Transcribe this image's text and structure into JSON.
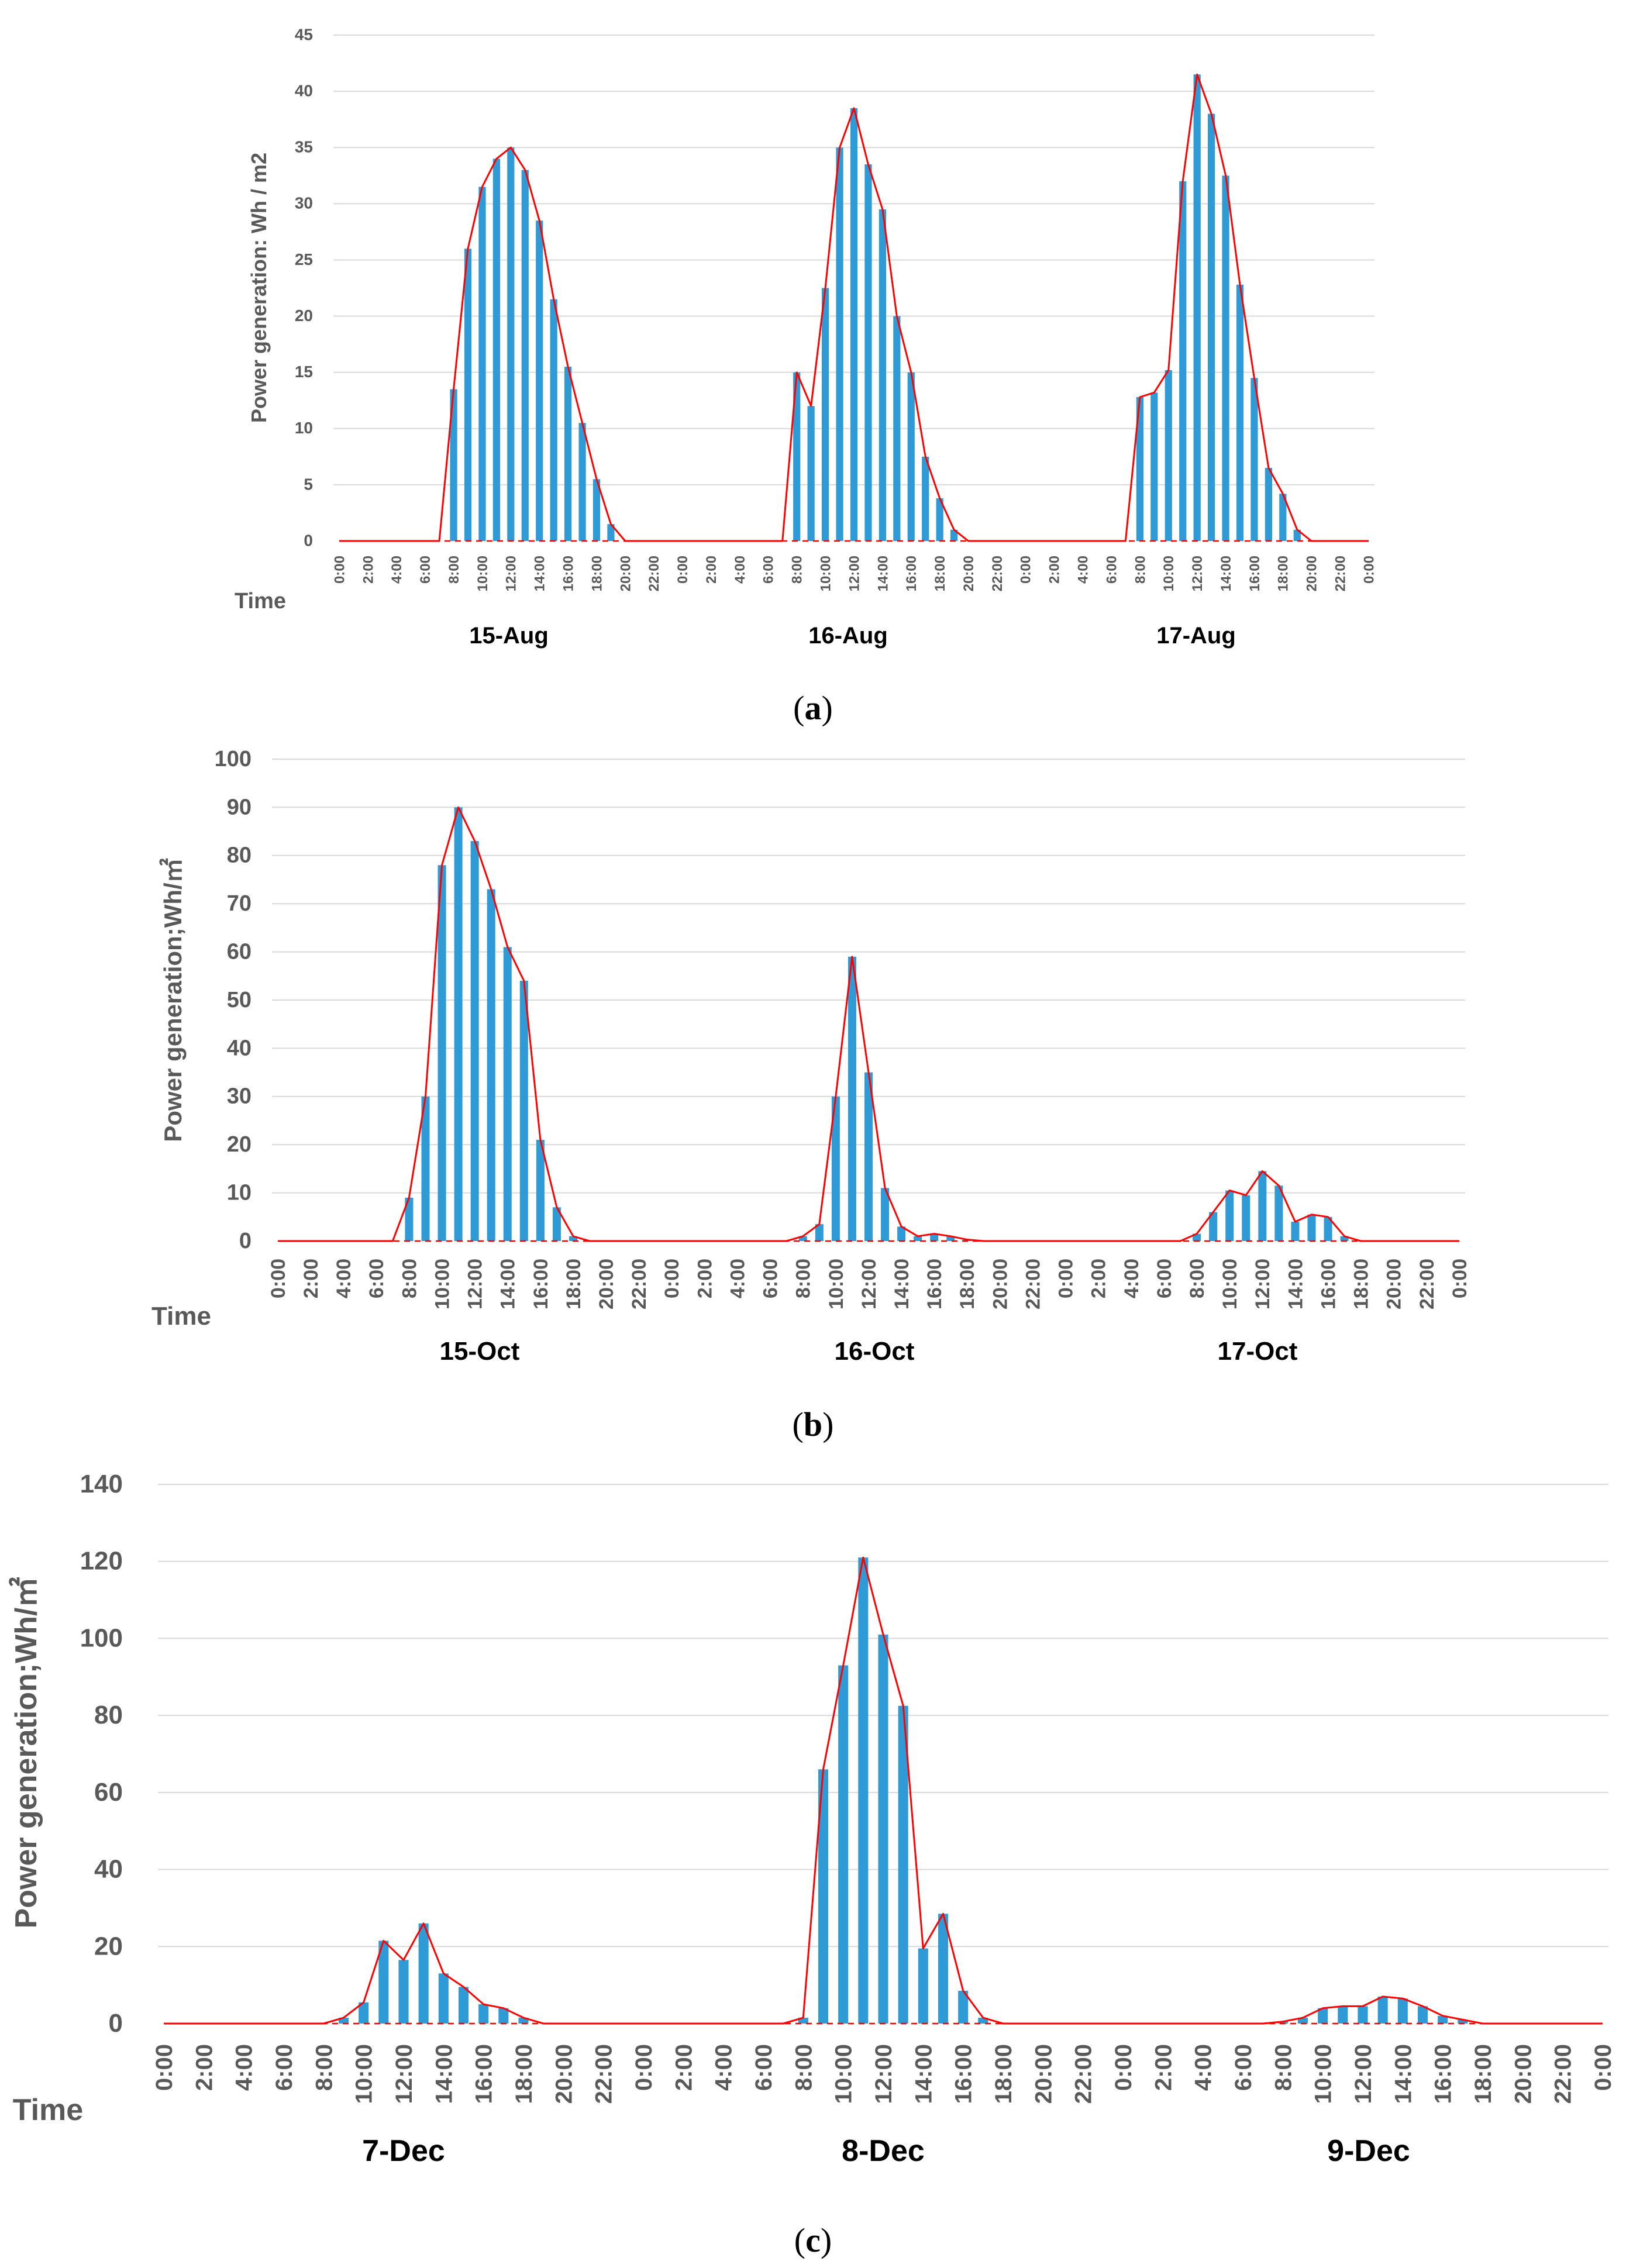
{
  "colors": {
    "bar": "#2e9bd6",
    "line": "#ff0000",
    "grid": "#d9d9d9",
    "axis_text": "#595959"
  },
  "time_tick_labels": [
    "0:00",
    "2:00",
    "4:00",
    "6:00",
    "8:00",
    "10:00",
    "12:00",
    "14:00",
    "16:00",
    "18:00",
    "20:00",
    "22:00",
    "0:00",
    "2:00",
    "4:00",
    "6:00",
    "8:00",
    "10:00",
    "12:00",
    "14:00",
    "16:00",
    "18:00",
    "20:00",
    "22:00",
    "0:00",
    "2:00",
    "4:00",
    "6:00",
    "8:00",
    "10:00",
    "12:00",
    "14:00",
    "16:00",
    "18:00",
    "20:00",
    "22:00",
    "0:00"
  ],
  "chart_data": [
    {
      "type": "bar",
      "panel_label": "(a)",
      "ylabel": "Power generation: Wh / m2",
      "xlabel": "Time",
      "ylim": [
        0,
        45
      ],
      "yticks": [
        0,
        5,
        10,
        15,
        20,
        25,
        30,
        35,
        40,
        45
      ],
      "grid": true,
      "date_labels": [
        "15-Aug",
        "16-Aug",
        "17-Aug"
      ],
      "series": [
        {
          "name": "bars",
          "values": [
            0,
            0,
            0,
            0,
            0,
            0,
            0,
            0,
            13.5,
            26,
            31.5,
            34,
            35,
            33,
            28.5,
            21.5,
            15.5,
            10.5,
            5.5,
            1.5,
            0,
            0,
            0,
            0,
            0,
            0,
            0,
            0,
            0,
            0,
            0,
            0,
            15,
            12,
            22.5,
            35,
            38.5,
            33.5,
            29.5,
            20,
            15,
            7.5,
            3.8,
            1,
            0,
            0,
            0,
            0,
            0,
            0,
            0,
            0,
            0,
            0,
            0,
            0,
            12.8,
            13.2,
            15.2,
            32,
            41.5,
            38,
            32.5,
            22.8,
            14.5,
            6.5,
            4.2,
            1,
            0,
            0,
            0,
            0,
            0
          ]
        }
      ]
    },
    {
      "type": "bar",
      "panel_label": "(b)",
      "ylabel": "Power generation;Wh/㎡",
      "xlabel": "Time",
      "ylim": [
        0,
        100
      ],
      "yticks": [
        0,
        10,
        20,
        30,
        40,
        50,
        60,
        70,
        80,
        90,
        100
      ],
      "grid": true,
      "date_labels": [
        "15-Oct",
        "16-Oct",
        "17-Oct"
      ],
      "series": [
        {
          "name": "bars",
          "values": [
            0,
            0,
            0,
            0,
            0,
            0,
            0,
            0,
            9,
            30,
            78,
            90,
            83,
            73,
            61,
            54,
            21,
            7,
            1,
            0,
            0,
            0,
            0,
            0,
            0,
            0,
            0,
            0,
            0,
            0,
            0,
            0,
            1,
            3.5,
            30,
            59,
            35,
            11,
            3,
            1,
            1.5,
            1,
            0.3,
            0,
            0,
            0,
            0,
            0,
            0,
            0,
            0,
            0,
            0,
            0,
            0,
            0,
            1.5,
            6,
            10.5,
            9.5,
            14.5,
            11.5,
            4,
            5.5,
            5,
            1,
            0,
            0,
            0,
            0,
            0,
            0,
            0
          ]
        }
      ]
    },
    {
      "type": "bar",
      "panel_label": "(c)",
      "ylabel": "Power generation;Wh/㎡",
      "xlabel": "Time",
      "ylim": [
        0,
        140
      ],
      "yticks": [
        0,
        20,
        40,
        60,
        80,
        100,
        120,
        140
      ],
      "grid": true,
      "date_labels": [
        "7-Dec",
        "8-Dec",
        "9-Dec"
      ],
      "series": [
        {
          "name": "bars",
          "values": [
            0,
            0,
            0,
            0,
            0,
            0,
            0,
            0,
            0,
            1.5,
            5.5,
            21.5,
            16.5,
            26,
            13,
            9.5,
            5,
            4,
            1.5,
            0,
            0,
            0,
            0,
            0,
            0,
            0,
            0,
            0,
            0,
            0,
            0,
            0,
            1.5,
            66,
            93,
            121,
            101,
            82.5,
            19.5,
            28.5,
            8.5,
            1.5,
            0,
            0,
            0,
            0,
            0,
            0,
            0,
            0,
            0,
            0,
            0,
            0,
            0,
            0,
            0.5,
            1.5,
            4,
            4.5,
            4.5,
            7,
            6.5,
            4.5,
            2,
            1,
            0,
            0,
            0,
            0,
            0,
            0,
            0
          ]
        }
      ]
    }
  ]
}
